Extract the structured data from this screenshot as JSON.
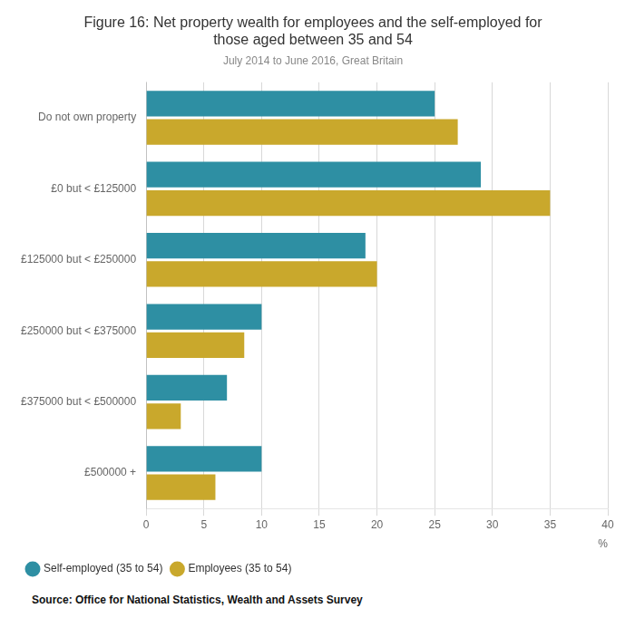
{
  "chart_data": {
    "type": "bar",
    "orientation": "horizontal",
    "title": "Figure 16: Net property wealth for employees and the self-employed for\nthose aged between 35 and 54",
    "subtitle": "July 2014 to June 2016, Great Britain",
    "source": "Source: Office for National Statistics, Wealth and Assets Survey",
    "xlabel": "%",
    "categories": [
      "Do not own property",
      "£0 but < £125000",
      "£125000 but < £250000",
      "£250000 but < £375000",
      "£375000 but < £500000",
      "£500000 +"
    ],
    "series": [
      {
        "name": "Self-employed (35 to 54)",
        "color": "#2e8fa3",
        "values": [
          25,
          29,
          19,
          10,
          7,
          10
        ]
      },
      {
        "name": "Employees (35 to 54)",
        "color": "#c9a82c",
        "values": [
          27,
          35,
          20,
          8.5,
          3,
          6
        ]
      }
    ],
    "xlim": [
      0,
      40
    ],
    "xticks": [
      0,
      5,
      10,
      15,
      20,
      25,
      30,
      35,
      40
    ],
    "grid": true,
    "legend": "bottom"
  }
}
